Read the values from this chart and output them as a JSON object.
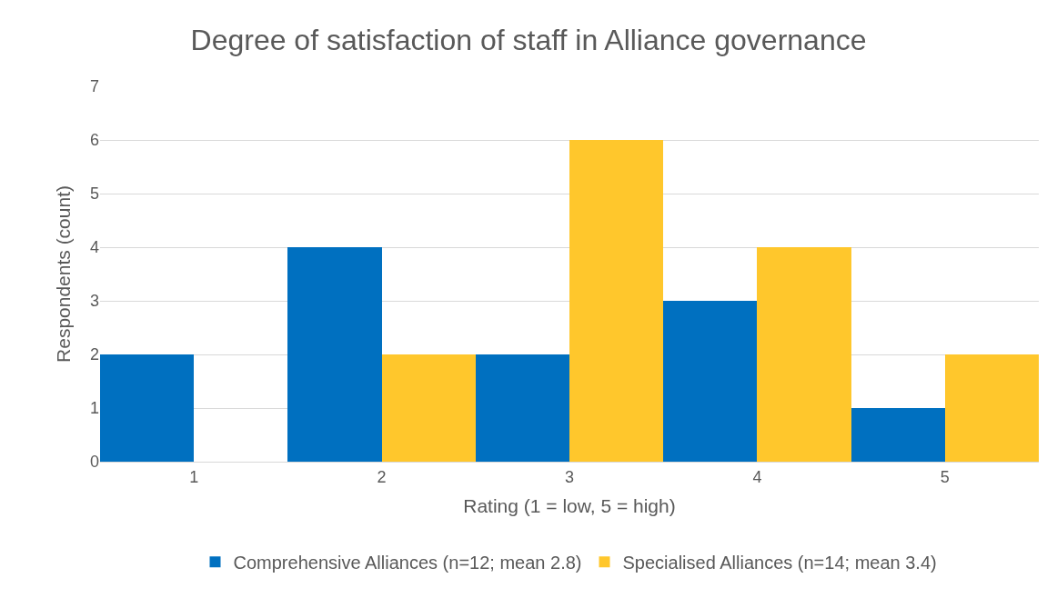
{
  "chart_data": {
    "type": "bar",
    "title": "Degree of satisfaction of staff in Alliance governance",
    "xlabel": "Rating (1 = low, 5 = high)",
    "ylabel": "Respondents (count)",
    "categories": [
      "1",
      "2",
      "3",
      "4",
      "5"
    ],
    "series": [
      {
        "name": "Comprehensive Alliances (n=12; mean 2.8)",
        "color": "#0070c0",
        "values": [
          2,
          4,
          2,
          3,
          1
        ]
      },
      {
        "name": "Specialised Alliances (n=14; mean 3.4)",
        "color": "#ffc72c",
        "values": [
          0,
          2,
          6,
          4,
          2
        ]
      }
    ],
    "ylim": [
      0,
      7
    ],
    "yticks": [
      0,
      1,
      2,
      3,
      4,
      5,
      6,
      7
    ],
    "grid": "y",
    "legend": "bottom"
  }
}
